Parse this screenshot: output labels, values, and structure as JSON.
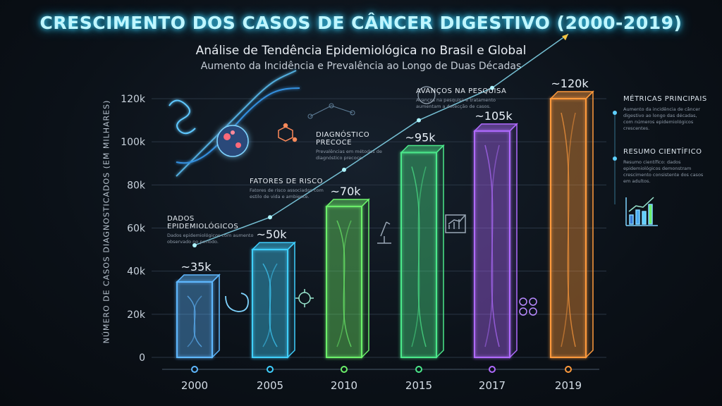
{
  "title": "CRESCIMENTO DOS CASOS DE CÂNCER DIGESTIVO (2000-2019)",
  "subtitle": "Análise de Tendência Epidemiológica no Brasil e Global",
  "subtitle2": "Aumento da Incidência e Prevalência ao Longo de Duas Décadas",
  "annotations": [
    {
      "heading": "DADOS EPIDEMIOLÓGICOS",
      "body": "Dados epidemiológicos com aumento observado no período."
    },
    {
      "heading": "FATORES DE RISCO",
      "body": "Fatores de risco associados com estilo de vida e ambiente."
    },
    {
      "heading": "DIAGNÓSTICO PRECOCE",
      "body": "Prevalências em métodos de diagnóstico precoce."
    },
    {
      "heading": "AVANÇOS NA PESQUISA",
      "body": "Avanços na pesquisa e tratamento aumentam a detecção de casos."
    }
  ],
  "side_panels": [
    {
      "heading": "MÉTRICAS PRINCIPAIS",
      "body": "Aumento da incidência de câncer digestivo ao longo das décadas, com números epidemiológicos crescentes."
    },
    {
      "heading": "RESUMO CIENTÍFICO",
      "body": "Resumo científico: dados epidemiológicos demonstram crescimento consistente dos casos em adultos."
    }
  ],
  "colors": {
    "title_glow": "#3fd7ff",
    "bars": [
      "#5fb8ff",
      "#3fd0ff",
      "#6cf06a",
      "#4be88a",
      "#b06bff",
      "#ff9a3c"
    ]
  },
  "chart_data": {
    "type": "bar",
    "title": "CRESCIMENTO DOS CASOS DE CÂNCER DIGESTIVO (2000-2019)",
    "xlabel": "",
    "ylabel": "NÚMERO DE CASOS DIAGNOSTICADOS (EM MILHARES)",
    "categories": [
      "2000",
      "2005",
      "2010",
      "2015",
      "2017",
      "2019"
    ],
    "values": [
      35,
      50,
      70,
      95,
      105,
      120
    ],
    "data_labels": [
      "~35k",
      "~50k",
      "~70k",
      "~95k",
      "~105k",
      "~120k"
    ],
    "yticks": [
      0,
      20,
      40,
      60,
      80,
      100,
      120
    ],
    "ytick_labels": [
      "0",
      "20k",
      "40k",
      "60k",
      "80k",
      "100k",
      "120k"
    ],
    "ylim": [
      0,
      120
    ],
    "grid": true,
    "trend_line": [
      52,
      65,
      87,
      110,
      125,
      150
    ]
  }
}
